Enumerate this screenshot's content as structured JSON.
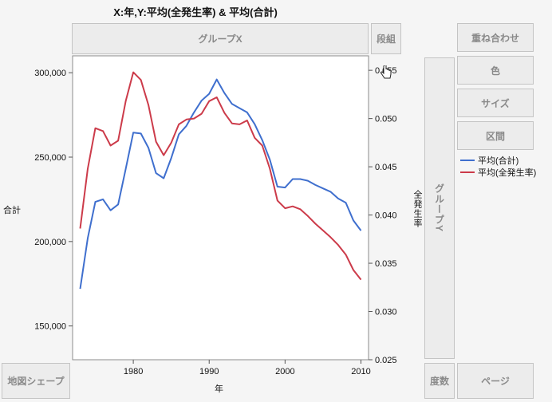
{
  "title": "X:年,Y:平均(全発生率) & 平均(合計)",
  "zones": {
    "group_x": "グループX",
    "wrap": "段組",
    "overlay": "重ね合わせ",
    "color": "色",
    "size": "サイズ",
    "interval": "区間",
    "group_y": "グループY",
    "map_shape": "地図シェープ",
    "freq": "度数",
    "page": "ページ"
  },
  "legend": [
    {
      "label": "平均(合計)",
      "color": "#3f6fce"
    },
    {
      "label": "平均(全発生率)",
      "color": "#cc3b4a"
    }
  ],
  "chart_data": {
    "type": "line",
    "xlabel": "年",
    "ylabel_left": "合計",
    "ylabel_right": "全発生率",
    "xlim": [
      1972,
      2011
    ],
    "ylim_left": [
      130000,
      310000
    ],
    "ylim_right": [
      0.025,
      0.0565
    ],
    "x_ticks": [
      1980,
      1990,
      2000,
      2010
    ],
    "y_left_ticks": [
      {
        "value": 150000,
        "label": "150,000"
      },
      {
        "value": 200000,
        "label": "200,000"
      },
      {
        "value": 250000,
        "label": "250,000"
      },
      {
        "value": 300000,
        "label": "300,000"
      }
    ],
    "y_right_ticks": [
      {
        "value": 0.025,
        "label": "0.025"
      },
      {
        "value": 0.03,
        "label": "0.030"
      },
      {
        "value": 0.035,
        "label": "0.035"
      },
      {
        "value": 0.04,
        "label": "0.040"
      },
      {
        "value": 0.045,
        "label": "0.045"
      },
      {
        "value": 0.05,
        "label": "0.050"
      },
      {
        "value": 0.055,
        "label": "0.055"
      }
    ],
    "series": [
      {
        "name": "平均(合計)",
        "axis": "left",
        "color": "#3f6fce",
        "x": [
          1973,
          1974,
          1975,
          1976,
          1977,
          1978,
          1979,
          1980,
          1981,
          1982,
          1983,
          1984,
          1985,
          1986,
          1987,
          1988,
          1989,
          1990,
          1991,
          1992,
          1993,
          1994,
          1995,
          1996,
          1997,
          1998,
          1999,
          2000,
          2001,
          2002,
          2003,
          2004,
          2005,
          2006,
          2007,
          2008,
          2009,
          2010
        ],
        "y": [
          172000,
          202000,
          223500,
          225000,
          218500,
          222000,
          243000,
          264500,
          264000,
          255500,
          240500,
          237500,
          249500,
          263500,
          268500,
          276500,
          283500,
          287500,
          296000,
          288000,
          281500,
          279000,
          276500,
          269500,
          260000,
          248500,
          232500,
          232000,
          237000,
          237000,
          236000,
          233500,
          231500,
          229500,
          225500,
          223000,
          212500,
          206500
        ]
      },
      {
        "name": "平均(全発生率)",
        "axis": "right",
        "color": "#cc3b4a",
        "x": [
          1973,
          1974,
          1975,
          1976,
          1977,
          1978,
          1979,
          1980,
          1981,
          1982,
          1983,
          1984,
          1985,
          1986,
          1987,
          1988,
          1989,
          1990,
          1991,
          1992,
          1993,
          1994,
          1995,
          1996,
          1997,
          1998,
          1999,
          2000,
          2001,
          2002,
          2003,
          2004,
          2005,
          2006,
          2007,
          2008,
          2009,
          2010
        ],
        "y": [
          0.0386,
          0.0448,
          0.049,
          0.0487,
          0.0472,
          0.0477,
          0.0518,
          0.0548,
          0.054,
          0.0514,
          0.0476,
          0.0462,
          0.0475,
          0.0494,
          0.0499,
          0.05,
          0.0505,
          0.0518,
          0.0522,
          0.0506,
          0.0495,
          0.0494,
          0.0498,
          0.048,
          0.0472,
          0.0448,
          0.0415,
          0.0407,
          0.0409,
          0.0406,
          0.0399,
          0.0391,
          0.0384,
          0.0377,
          0.0369,
          0.0359,
          0.0343,
          0.0333
        ]
      }
    ]
  }
}
